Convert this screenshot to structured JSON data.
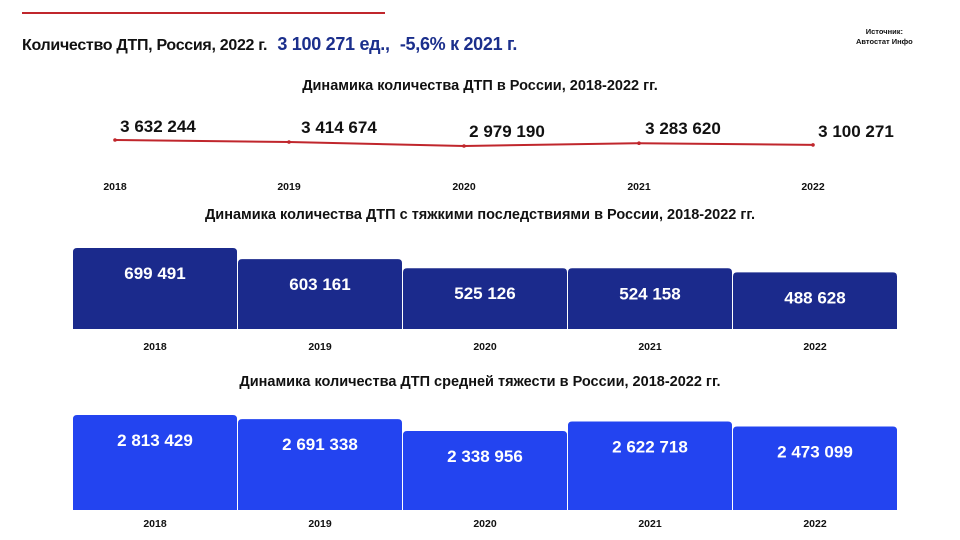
{
  "header": {
    "title": "Количество ДТП, Россия, 2022 г.",
    "value": "3 100 271 ед.,",
    "change": "-5,6% к 2021 г.",
    "source_label": "Источник:",
    "source_name": "Автостат Инфо"
  },
  "colors": {
    "accent_red": "#c0262c",
    "dark_blue": "#1b2a8c",
    "bright_blue": "#2344f0"
  },
  "chart_data": [
    {
      "type": "line",
      "title": "Динамика количества ДТП в России, 2018-2022 гг.",
      "x": [
        "2018",
        "2019",
        "2020",
        "2021",
        "2022"
      ],
      "values": [
        3632244,
        3414674,
        2979190,
        3283620,
        3100271
      ],
      "labels": [
        "3 632 244",
        "3 414 674",
        "2 979 190",
        "3 283 620",
        "3 100 271"
      ],
      "color": "#c0262c"
    },
    {
      "type": "bar",
      "title": "Динамика количества ДТП с тяжкими последствиями в России, 2018-2022 гг.",
      "categories": [
        "2018",
        "2019",
        "2020",
        "2021",
        "2022"
      ],
      "values": [
        699491,
        603161,
        525126,
        524158,
        488628
      ],
      "labels": [
        "699 491",
        "603 161",
        "525 126",
        "524 158",
        "488 628"
      ],
      "color": "#1b2a8c"
    },
    {
      "type": "bar",
      "title": "Динамика количества ДТП средней тяжести в России, 2018-2022 гг.",
      "categories": [
        "2018",
        "2019",
        "2020",
        "2021",
        "2022"
      ],
      "values": [
        2813429,
        2691338,
        2338956,
        2622718,
        2473099
      ],
      "labels": [
        "2 813 429",
        "2 691 338",
        "2 338 956",
        "2 622 718",
        "2 473 099"
      ],
      "color": "#2344f0"
    }
  ]
}
